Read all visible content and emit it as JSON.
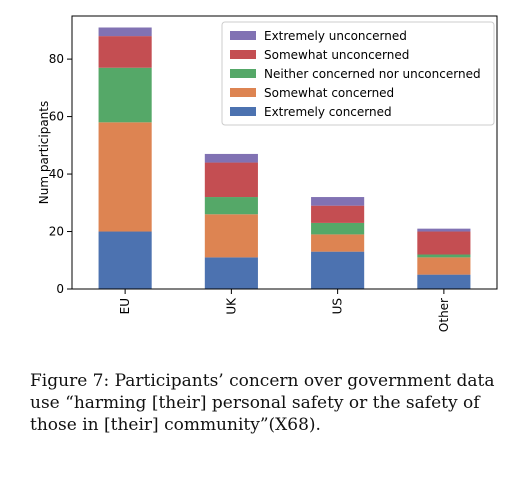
{
  "chart_data": {
    "type": "bar",
    "stacked": true,
    "categories": [
      "EU",
      "UK",
      "US",
      "Other"
    ],
    "series": [
      {
        "name": "Extremely concerned",
        "values": [
          20,
          11,
          13,
          5
        ],
        "color": "#4c72b0"
      },
      {
        "name": "Somewhat concerned",
        "values": [
          38,
          15,
          6,
          6
        ],
        "color": "#dd8452"
      },
      {
        "name": "Neither concerned nor unconcerned",
        "values": [
          19,
          6,
          4,
          1
        ],
        "color": "#55a868"
      },
      {
        "name": "Somewhat unconcerned",
        "values": [
          11,
          12,
          6,
          8
        ],
        "color": "#c44e52"
      },
      {
        "name": "Extremely unconcerned",
        "values": [
          3,
          3,
          3,
          1
        ],
        "color": "#8172b3"
      }
    ],
    "xlabel": "",
    "ylabel": "Num participants",
    "ylim": [
      0,
      95
    ],
    "yticks": [
      0,
      20,
      40,
      60,
      80
    ],
    "grid": false,
    "legend_placement": "top-right"
  },
  "caption": "Figure 7: Participants’ concern over government data use “harming [their] personal safety or the safety of those in [their] community”(X68)."
}
